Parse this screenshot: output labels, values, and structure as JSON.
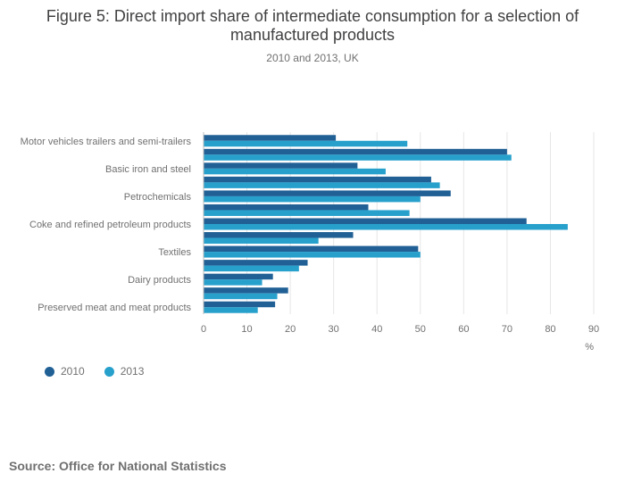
{
  "header": {
    "title": "Figure 5: Direct import share of intermediate consumption for a selection of manufactured products",
    "subtitle": "2010 and 2013, UK"
  },
  "colors": {
    "series_2010": "#206095",
    "series_2013": "#27a0cc",
    "grid": "#e6e6e6",
    "text": "#707071"
  },
  "chart_data": {
    "type": "bar",
    "orientation": "horizontal",
    "categories": [
      "Motor vehicles trailers and semi-trailers",
      "",
      "Basic iron and steel",
      "",
      "Petrochemicals",
      "",
      "Coke and refined petroleum products",
      "",
      "Textiles",
      "",
      "Dairy products",
      "",
      "Preserved meat and meat products"
    ],
    "series": [
      {
        "name": "2010",
        "values": [
          30.5,
          70,
          35.5,
          52.5,
          57,
          38,
          74.5,
          34.5,
          49.5,
          24,
          16,
          19.5,
          16.5
        ]
      },
      {
        "name": "2013",
        "values": [
          47,
          71,
          42,
          54.5,
          50,
          47.5,
          84,
          26.5,
          50,
          22,
          13.5,
          17,
          12.5
        ]
      }
    ],
    "xlim": [
      0,
      90
    ],
    "xticks": [
      "0",
      "10",
      "20",
      "30",
      "40",
      "50",
      "60",
      "70",
      "80",
      "90"
    ],
    "xlabel": "%",
    "grid": true,
    "legend_position": "bottom-left"
  },
  "legend": {
    "items": [
      "2010",
      "2013"
    ]
  },
  "footer": {
    "source": "Source: Office for National Statistics"
  }
}
